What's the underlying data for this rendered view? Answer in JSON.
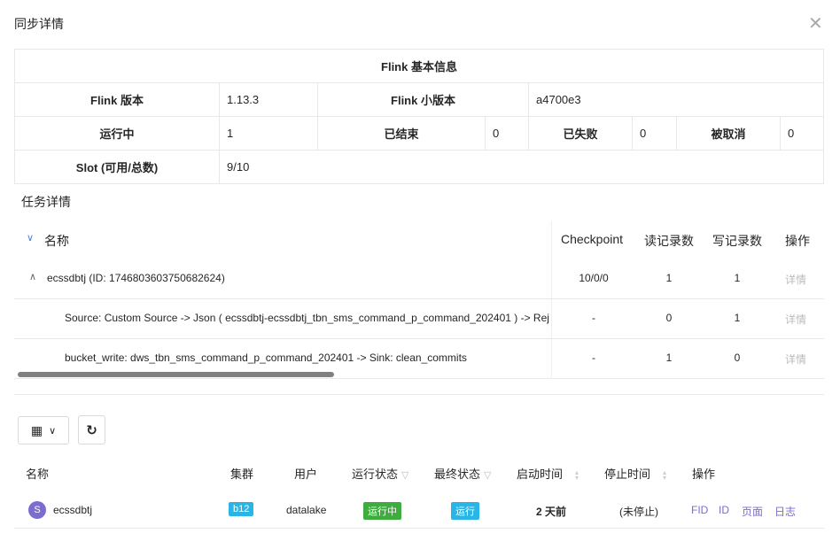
{
  "dialog": {
    "title": "同步详情"
  },
  "flink_info": {
    "heading": "Flink 基本信息",
    "version_label": "Flink 版本",
    "version": "1.13.3",
    "minor_label": "Flink 小版本",
    "minor": "a4700e3",
    "running_label": "运行中",
    "running": "1",
    "finished_label": "已结束",
    "finished": "0",
    "failed_label": "已失败",
    "failed": "0",
    "cancelled_label": "被取消",
    "cancelled": "0",
    "slot_label": "Slot (可用/总数)",
    "slot": "9/10"
  },
  "tasks": {
    "title": "任务详情",
    "columns": [
      "名称",
      "Checkpoint",
      "读记录数",
      "写记录数",
      "操作"
    ],
    "rows": [
      {
        "name": "ecssdbtj (ID: 1746803603750682624)",
        "checkpoint": "10/0/0",
        "read": "1",
        "write": "1",
        "action": "详情"
      },
      {
        "name": "Source: Custom Source -> Json ( ecssdbtj-ecssdbtj_tbn_sms_command_p_command_202401 ) -> Rej",
        "checkpoint": "-",
        "read": "0",
        "write": "1",
        "action": "详情"
      },
      {
        "name": "bucket_write: dws_tbn_sms_command_p_command_202401 -> Sink: clean_commits",
        "checkpoint": "-",
        "read": "1",
        "write": "0",
        "action": "详情"
      }
    ]
  },
  "jobs": {
    "columns": [
      "名称",
      "集群",
      "用户",
      "运行状态",
      "最终状态",
      "启动时间",
      "停止时间",
      "操作"
    ],
    "row": {
      "avatar": "S",
      "name": "ecssdbtj",
      "cluster": "b12",
      "user": "datalake",
      "state": "运行中",
      "final_state": "运行",
      "start": "2 天前",
      "stop": "(未停止)",
      "actions": [
        "FID",
        "ID",
        "页面",
        "日志"
      ]
    },
    "colors": {
      "cluster": "#29b6e6",
      "running": "#3dae3d",
      "final": "#29b6e6",
      "avatar": "#7b6cd0",
      "link": "#7b6cd0"
    }
  }
}
